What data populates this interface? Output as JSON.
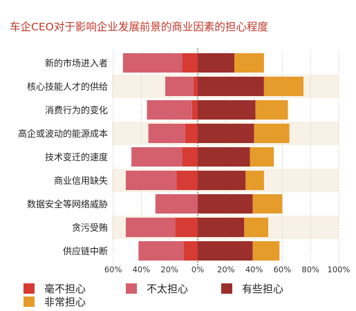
{
  "chart_data": {
    "type": "bar",
    "title": "车企CEO对于影响企业发展前景的商业因素的担心程度",
    "categories": [
      "新的市场进入者",
      "核心技能人才的供给",
      "消费行为的变化",
      "高企或波动的能源成本",
      "技术变迁的速度",
      "商业信用缺失",
      "数据安全等网络威胁",
      "贪污受贿",
      "供应链中断"
    ],
    "series": [
      {
        "name": "毫不担心",
        "color": "#d63c33",
        "side": "left",
        "values": [
          11,
          3,
          4,
          9,
          11,
          15,
          0,
          16,
          10
        ]
      },
      {
        "name": "不太担心",
        "color": "#d4606e",
        "side": "left",
        "values": [
          42,
          20,
          32,
          26,
          36,
          36,
          30,
          35,
          32
        ]
      },
      {
        "name": "有些担心",
        "color": "#9b2f2c",
        "side": "right",
        "values": [
          26,
          47,
          41,
          40,
          37,
          34,
          39,
          33,
          39
        ]
      },
      {
        "name": "非常担心",
        "color": "#e59c2b",
        "side": "right",
        "values": [
          21,
          28,
          23,
          25,
          17,
          13,
          21,
          17,
          19
        ]
      }
    ],
    "xlim": [
      -60,
      100
    ],
    "x_ticks": [
      "60%",
      "40%",
      "20%",
      "0%",
      "20%",
      "40%",
      "60%",
      "80%",
      "100%"
    ],
    "legend": {
      "position": "bottom"
    }
  }
}
